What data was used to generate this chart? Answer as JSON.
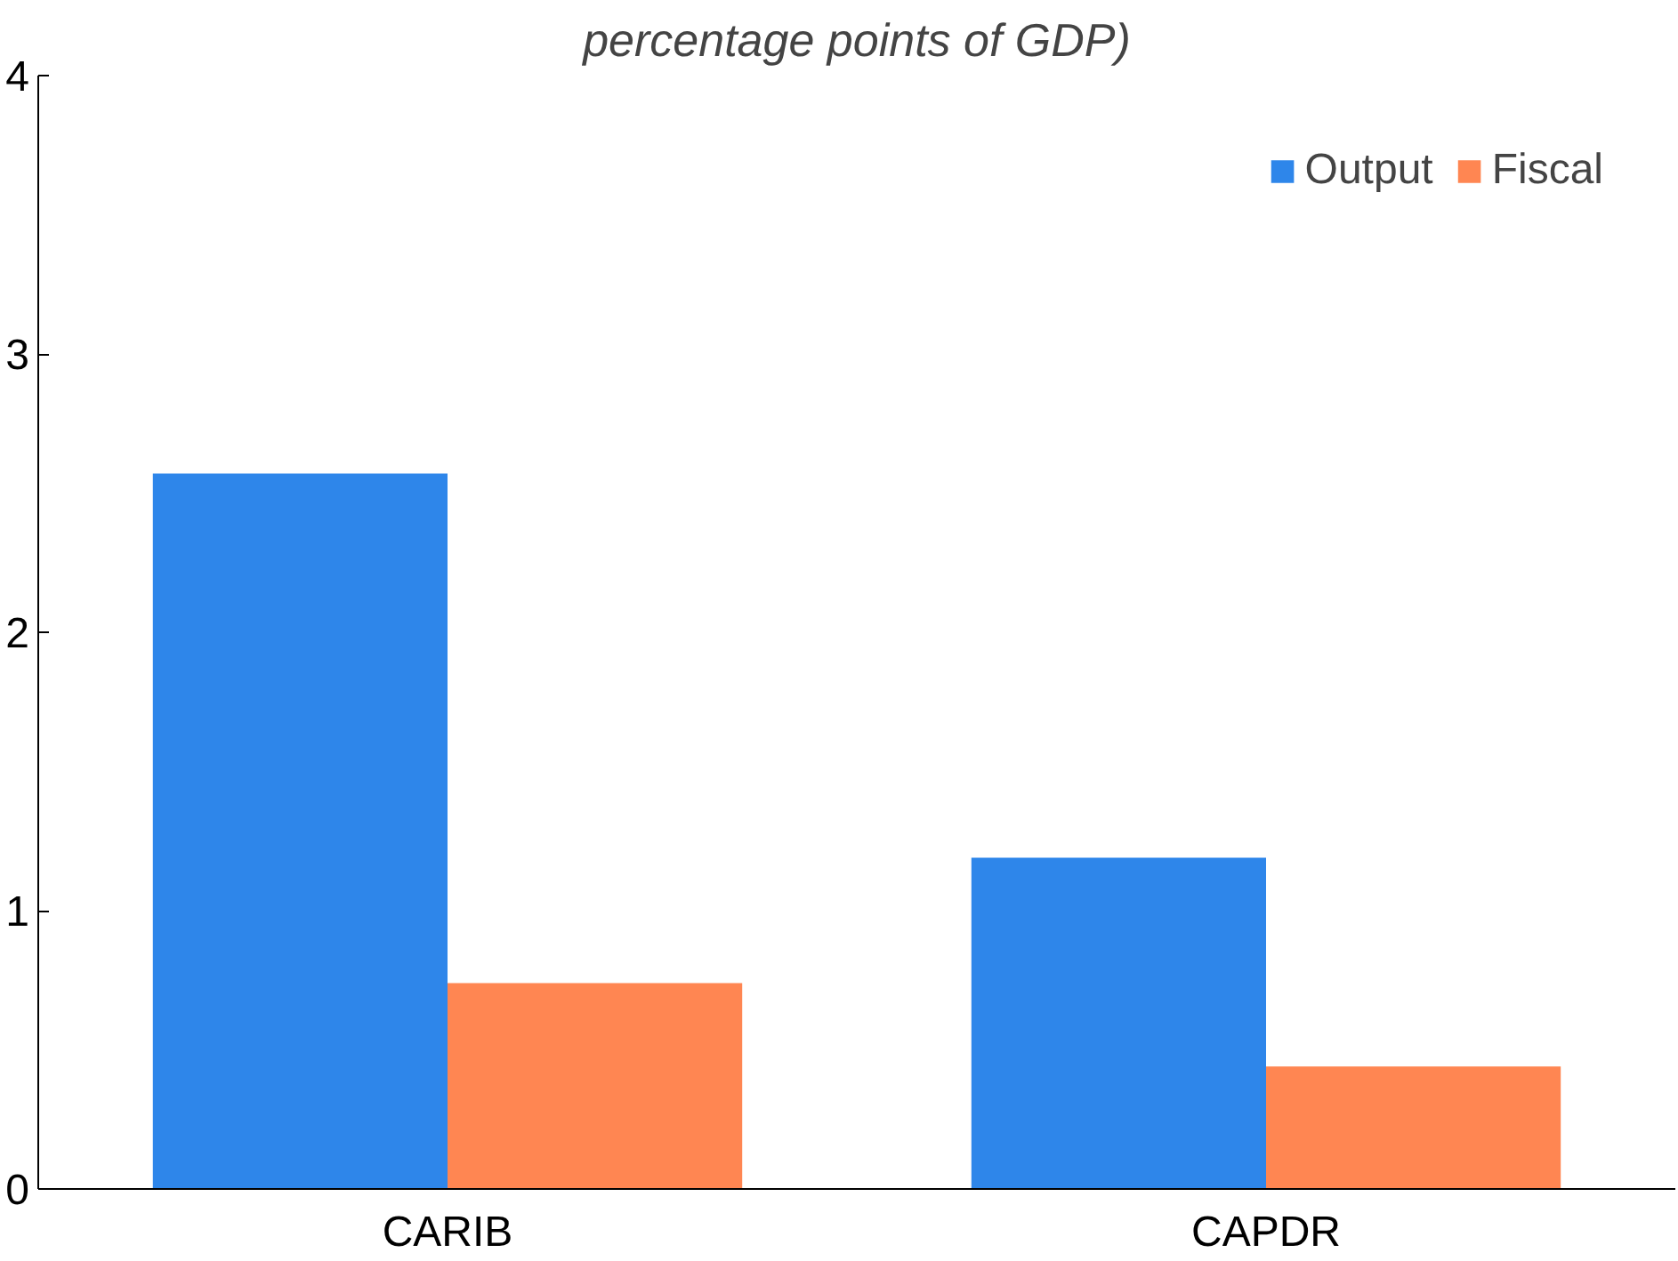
{
  "chart_data": {
    "type": "bar",
    "title": "percentage points of GDP)",
    "categories": [
      "CARIB",
      "CAPDR"
    ],
    "series": [
      {
        "name": "Output",
        "color": "#2e86ea",
        "values": [
          2.57,
          1.19
        ]
      },
      {
        "name": "Fiscal",
        "color": "#ff8652",
        "values": [
          0.74,
          0.44
        ]
      }
    ],
    "ylim": [
      0,
      4
    ],
    "yticks": [
      0,
      1,
      2,
      3,
      4
    ],
    "grid": false,
    "legend": "top right"
  }
}
